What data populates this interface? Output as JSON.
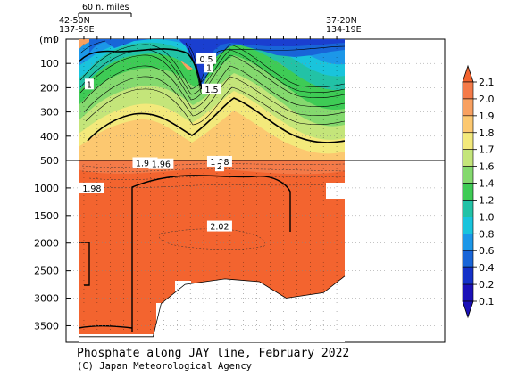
{
  "chart_data": {
    "type": "section",
    "title": "Phosphate along JAY line, February 2022",
    "credit": "(C) Japan Meteorological Agency",
    "ylabel": "(m)",
    "scale_bar_label": "60 n. miles",
    "left_position": [
      "42-50N",
      "137-59E"
    ],
    "right_position": [
      "37-20N",
      "134-19E"
    ],
    "y_ticks_upper": [
      0,
      100,
      200,
      300,
      400,
      500
    ],
    "y_ticks_lower": [
      1000,
      1500,
      2000,
      2500,
      3000,
      3500
    ],
    "depth_range_upper": [
      0,
      500
    ],
    "depth_range_lower": [
      500,
      3800
    ],
    "colorbar": {
      "levels": [
        "2.1",
        "2.0",
        "1.9",
        "1.8",
        "1.7",
        "1.6",
        "1.4",
        "1.2",
        "1.0",
        "0.8",
        "0.6",
        "0.4",
        "0.2",
        "0.1"
      ],
      "colors": [
        "#f3642f",
        "#f47a48",
        "#f8a060",
        "#fcc870",
        "#f3e97b",
        "#c4e57a",
        "#84d96e",
        "#3ecb55",
        "#22c2a6",
        "#19c4dc",
        "#1c97e8",
        "#1865d8",
        "#1431c8",
        "#1a10b8"
      ]
    },
    "contour_labels": [
      {
        "text": "0.5",
        "x_frac": 0.48,
        "depth": 80
      },
      {
        "text": "1",
        "x_frac": 0.49,
        "depth": 115
      },
      {
        "text": "1",
        "x_frac": 0.04,
        "depth": 185
      },
      {
        "text": "1.5",
        "x_frac": 0.5,
        "depth": 205
      },
      {
        "text": "1.91",
        "x_frac": 0.25,
        "depth": 540
      },
      {
        "text": "1.96",
        "x_frac": 0.31,
        "depth": 560
      },
      {
        "text": "1.98",
        "x_frac": 0.53,
        "depth": 515
      },
      {
        "text": "2",
        "x_frac": 0.53,
        "depth": 600
      },
      {
        "text": "1.98",
        "x_frac": 0.05,
        "depth": 1000
      },
      {
        "text": "2.02",
        "x_frac": 0.53,
        "depth": 1690
      }
    ],
    "station_x_frac": [
      0.02,
      0.07,
      0.12,
      0.17,
      0.22,
      0.27,
      0.32,
      0.37,
      0.42,
      0.47,
      0.52,
      0.57,
      0.62,
      0.67,
      0.72,
      0.77,
      0.82,
      0.87,
      0.92,
      0.97
    ],
    "bottom_profile": [
      {
        "x_frac": 0.0,
        "depth": 3700
      },
      {
        "x_frac": 0.28,
        "depth": 3700
      },
      {
        "x_frac": 0.31,
        "depth": 3100
      },
      {
        "x_frac": 0.4,
        "depth": 2750
      },
      {
        "x_frac": 0.55,
        "depth": 2650
      },
      {
        "x_frac": 0.68,
        "depth": 2700
      },
      {
        "x_frac": 0.78,
        "depth": 3000
      },
      {
        "x_frac": 0.92,
        "depth": 2900
      },
      {
        "x_frac": 1.0,
        "depth": 2600
      }
    ],
    "grid": true
  }
}
